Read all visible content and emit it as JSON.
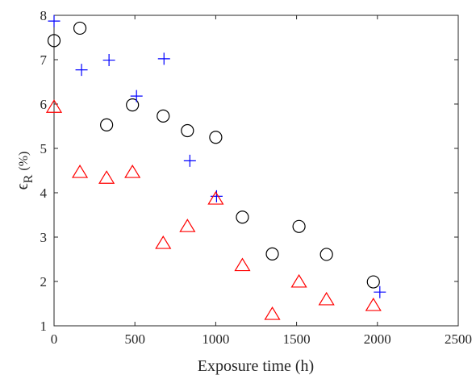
{
  "chart_data": {
    "type": "scatter",
    "xlabel": "Exposure time (h)",
    "ylabel": {
      "symbol": "ϵ",
      "subscript": "R",
      "unit": "(%)"
    },
    "xlim": [
      0,
      2500
    ],
    "ylim": [
      1,
      8
    ],
    "xticks": [
      "0",
      "500",
      "1000",
      "1500",
      "2000",
      "2500"
    ],
    "yticks": [
      "1",
      "2",
      "3",
      "4",
      "5",
      "6",
      "7",
      "8"
    ],
    "grid": false,
    "series": [
      {
        "marker": "circle",
        "color": "#000000",
        "x": [
          0,
          160,
          325,
          485,
          675,
          825,
          1000,
          1165,
          1350,
          1515,
          1685,
          1975
        ],
        "y": [
          7.43,
          7.71,
          5.53,
          5.98,
          5.73,
          5.4,
          5.25,
          3.45,
          2.62,
          3.24,
          2.61,
          1.99
        ]
      },
      {
        "marker": "plus",
        "color": "#0000ff",
        "x": [
          0,
          170,
          340,
          510,
          680,
          840,
          1005,
          2015
        ],
        "y": [
          7.87,
          6.77,
          6.99,
          6.18,
          7.02,
          4.72,
          3.92,
          1.76
        ]
      },
      {
        "marker": "triangle",
        "color": "#ff0000",
        "x": [
          0,
          160,
          325,
          485,
          675,
          825,
          1000,
          1165,
          1350,
          1515,
          1685,
          1975
        ],
        "y": [
          5.93,
          4.46,
          4.33,
          4.46,
          2.86,
          3.24,
          3.86,
          2.36,
          1.26,
          1.99,
          1.59,
          1.46
        ]
      }
    ]
  }
}
